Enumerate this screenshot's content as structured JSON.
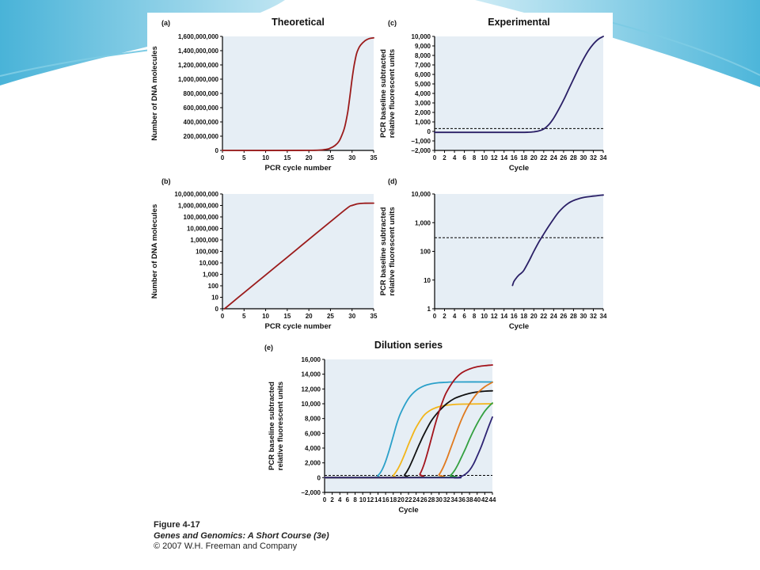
{
  "caption": {
    "figure": "Figure 4-17",
    "book": "Genes and Genomics: A Short Course (3e)",
    "copyright": "© 2007 W.H. Freeman and Company"
  },
  "colors": {
    "plot_bg": "#e6eef5",
    "theory_line": "#9b1b1b",
    "experimental_line": "#2a1f66",
    "slide_accent": "#4fb8d8",
    "dilution": [
      "#2aa0c9",
      "#f2b519",
      "#111111",
      "#a3141c",
      "#e07a1e",
      "#33a040",
      "#2d2373"
    ]
  },
  "chart_data": [
    {
      "id": "a",
      "panel_label": "(a)",
      "type": "line",
      "title": "Theoretical",
      "xlabel": "PCR cycle number",
      "ylabel": "Number of DNA molecules",
      "xlim": [
        0,
        35
      ],
      "ylim": [
        0,
        1600000000
      ],
      "yscale": "linear",
      "xticks": [
        0,
        5,
        10,
        15,
        20,
        25,
        30,
        35
      ],
      "yticks": [
        0,
        200000000,
        400000000,
        600000000,
        800000000,
        1000000000,
        1200000000,
        1400000000,
        1600000000
      ],
      "ytick_labels": [
        "0",
        "200,000,000",
        "400,000,000",
        "600,000,000",
        "800,000,000",
        "1,000,000,000",
        "1,200,000,000",
        "1,400,000,000",
        "1,600,000,000"
      ],
      "series": [
        {
          "color": "#9b1b1b",
          "x": [
            0,
            20,
            24,
            25,
            26,
            27,
            28,
            28.5,
            29,
            29.5,
            30,
            30.5,
            31,
            31.5,
            32,
            33,
            34,
            35
          ],
          "y": [
            0,
            1000000,
            16000000,
            33000000,
            67000000,
            130000000,
            270000000,
            380000000,
            540000000,
            760000000,
            1000000000,
            1200000000,
            1350000000,
            1430000000,
            1480000000,
            1540000000,
            1570000000,
            1580000000
          ]
        }
      ]
    },
    {
      "id": "b",
      "panel_label": "(b)",
      "type": "line",
      "title": "",
      "xlabel": "PCR cycle number",
      "ylabel": "Number of DNA molecules",
      "xlim": [
        0,
        35
      ],
      "ylim": [
        1,
        10000000000
      ],
      "yscale": "log",
      "xticks": [
        0,
        5,
        10,
        15,
        20,
        25,
        30,
        35
      ],
      "yticks": [
        1,
        10,
        100,
        1000,
        10000,
        100000,
        1000000,
        10000000,
        100000000,
        1000000000,
        10000000000
      ],
      "ytick_labels": [
        "0",
        "10",
        "100",
        "1,000",
        "10,000",
        "100,000",
        "1,000,000",
        "10,000,000",
        "100,000,000",
        "1,000,000,000",
        "10,000,000,000"
      ],
      "series": [
        {
          "color": "#9b1b1b",
          "x": [
            0.5,
            5,
            10,
            15,
            20,
            25,
            29,
            30,
            31,
            32,
            33,
            35
          ],
          "y": [
            1,
            25,
            880,
            31000,
            1100000,
            38000000,
            640000000,
            1000000000,
            1300000000,
            1480000000,
            1560000000,
            1580000000
          ]
        }
      ]
    },
    {
      "id": "c",
      "panel_label": "(c)",
      "type": "line",
      "title": "Experimental",
      "xlabel": "Cycle",
      "ylabel": [
        "PCR baseline subtracted",
        "relative fluorescent units"
      ],
      "xlim": [
        0,
        34
      ],
      "ylim": [
        -2000,
        10000
      ],
      "yscale": "linear",
      "xticks": [
        0,
        2,
        4,
        6,
        8,
        10,
        12,
        14,
        16,
        18,
        20,
        22,
        24,
        26,
        28,
        30,
        32,
        34
      ],
      "yticks": [
        -2000,
        -1000,
        0,
        1000,
        2000,
        3000,
        4000,
        5000,
        6000,
        7000,
        8000,
        9000,
        10000
      ],
      "ytick_labels": [
        "−2,000",
        "−1,000",
        "0",
        "1,000",
        "2,000",
        "3,000",
        "4,000",
        "5,000",
        "6,000",
        "7,000",
        "8,000",
        "9,000",
        "10,000"
      ],
      "threshold": 300,
      "series": [
        {
          "color": "#2a1f66",
          "x": [
            0,
            16,
            19,
            20,
            21,
            22,
            23,
            24,
            25,
            26,
            27,
            28,
            29,
            30,
            31,
            32,
            33,
            34
          ],
          "y": [
            -100,
            -100,
            -80,
            -40,
            50,
            250,
            700,
            1400,
            2300,
            3300,
            4400,
            5500,
            6600,
            7600,
            8500,
            9200,
            9700,
            10000
          ]
        }
      ]
    },
    {
      "id": "d",
      "panel_label": "(d)",
      "type": "line",
      "title": "",
      "xlabel": "Cycle",
      "ylabel": [
        "PCR baseline subtracted",
        "relative fluorescent units"
      ],
      "xlim": [
        0,
        34
      ],
      "ylim": [
        1,
        10000
      ],
      "yscale": "log",
      "xticks": [
        0,
        2,
        4,
        6,
        8,
        10,
        12,
        14,
        16,
        18,
        20,
        22,
        24,
        26,
        28,
        30,
        32,
        34
      ],
      "yticks": [
        1,
        10,
        100,
        1000,
        10000
      ],
      "ytick_labels": [
        "1",
        "10",
        "100",
        "1,000",
        "10,000"
      ],
      "threshold": 300,
      "series": [
        {
          "color": "#2a1f66",
          "x": [
            15.7,
            16,
            16.5,
            17,
            17.5,
            18,
            19,
            20,
            21,
            22,
            23,
            24,
            25,
            26,
            27,
            28,
            29,
            30,
            31,
            32,
            33,
            34
          ],
          "y": [
            6.5,
            9,
            12,
            15,
            17.5,
            22,
            45,
            100,
            210,
            400,
            750,
            1350,
            2300,
            3500,
            4800,
            5900,
            6800,
            7500,
            8000,
            8400,
            8800,
            9200
          ]
        }
      ]
    },
    {
      "id": "e",
      "panel_label": "(e)",
      "type": "line",
      "title": "Dilution series",
      "xlabel": "Cycle",
      "ylabel": [
        "PCR baseline subtracted",
        "relative fluorescent units"
      ],
      "xlim": [
        0,
        44
      ],
      "ylim": [
        -2000,
        16000
      ],
      "yscale": "linear",
      "xticks": [
        0,
        2,
        4,
        6,
        8,
        10,
        12,
        14,
        16,
        18,
        20,
        22,
        24,
        26,
        28,
        30,
        32,
        34,
        36,
        38,
        40,
        42,
        44
      ],
      "yticks": [
        -2000,
        0,
        2000,
        4000,
        6000,
        8000,
        10000,
        12000,
        14000,
        16000
      ],
      "ytick_labels": [
        "−2,000",
        "0",
        "2,000",
        "4,000",
        "6,000",
        "8,000",
        "10,000",
        "12,000",
        "14,000",
        "16,000"
      ],
      "threshold": 300,
      "series": [
        {
          "color": "#2aa0c9",
          "x": [
            0,
            13,
            14,
            15,
            16,
            17,
            18,
            19,
            20,
            22,
            24,
            26,
            28,
            30,
            32,
            34,
            44
          ],
          "y": [
            0,
            50,
            300,
            1000,
            2200,
            3800,
            5600,
            7400,
            8800,
            10700,
            11800,
            12400,
            12700,
            12850,
            12900,
            12950,
            12950
          ]
        },
        {
          "color": "#f2b519",
          "x": [
            0,
            17,
            18,
            19,
            20,
            21,
            22,
            23,
            24,
            26,
            28,
            30,
            32,
            34,
            36,
            44
          ],
          "y": [
            0,
            50,
            300,
            1000,
            2000,
            3200,
            4500,
            5700,
            6800,
            8400,
            9200,
            9600,
            9800,
            9900,
            9950,
            10000
          ]
        },
        {
          "color": "#111111",
          "x": [
            0,
            20,
            21,
            22,
            23,
            24,
            25,
            26,
            28,
            30,
            32,
            34,
            36,
            38,
            40,
            42,
            44
          ],
          "y": [
            0,
            50,
            400,
            1200,
            2300,
            3500,
            4700,
            5800,
            7700,
            9000,
            10000,
            10700,
            11100,
            11400,
            11600,
            11700,
            11750
          ]
        },
        {
          "color": "#a3141c",
          "x": [
            0,
            24,
            25,
            26,
            27,
            28,
            29,
            30,
            31,
            32,
            34,
            36,
            38,
            40,
            42,
            44
          ],
          "y": [
            0,
            50,
            500,
            1700,
            3400,
            5300,
            7200,
            8900,
            10400,
            11600,
            13200,
            14200,
            14700,
            15000,
            15150,
            15250
          ]
        },
        {
          "color": "#e07a1e",
          "x": [
            0,
            29,
            30,
            31,
            32,
            33,
            34,
            35,
            36,
            37,
            38,
            40,
            42,
            44
          ],
          "y": [
            0,
            50,
            400,
            1300,
            2500,
            3900,
            5300,
            6700,
            8000,
            9100,
            10000,
            11400,
            12300,
            12900
          ]
        },
        {
          "color": "#33a040",
          "x": [
            0,
            32,
            33,
            34,
            35,
            36,
            37,
            38,
            39,
            40,
            41,
            42,
            43,
            44
          ],
          "y": [
            0,
            50,
            300,
            900,
            1800,
            2900,
            4000,
            5200,
            6300,
            7300,
            8200,
            9000,
            9600,
            10100
          ]
        },
        {
          "color": "#2d2373",
          "x": [
            0,
            33,
            34,
            35,
            36,
            37,
            38,
            39,
            40,
            41,
            42,
            43,
            44
          ],
          "y": [
            0,
            0,
            -30,
            0,
            200,
            500,
            1000,
            1800,
            2900,
            4100,
            5500,
            6900,
            8200
          ]
        }
      ]
    }
  ]
}
